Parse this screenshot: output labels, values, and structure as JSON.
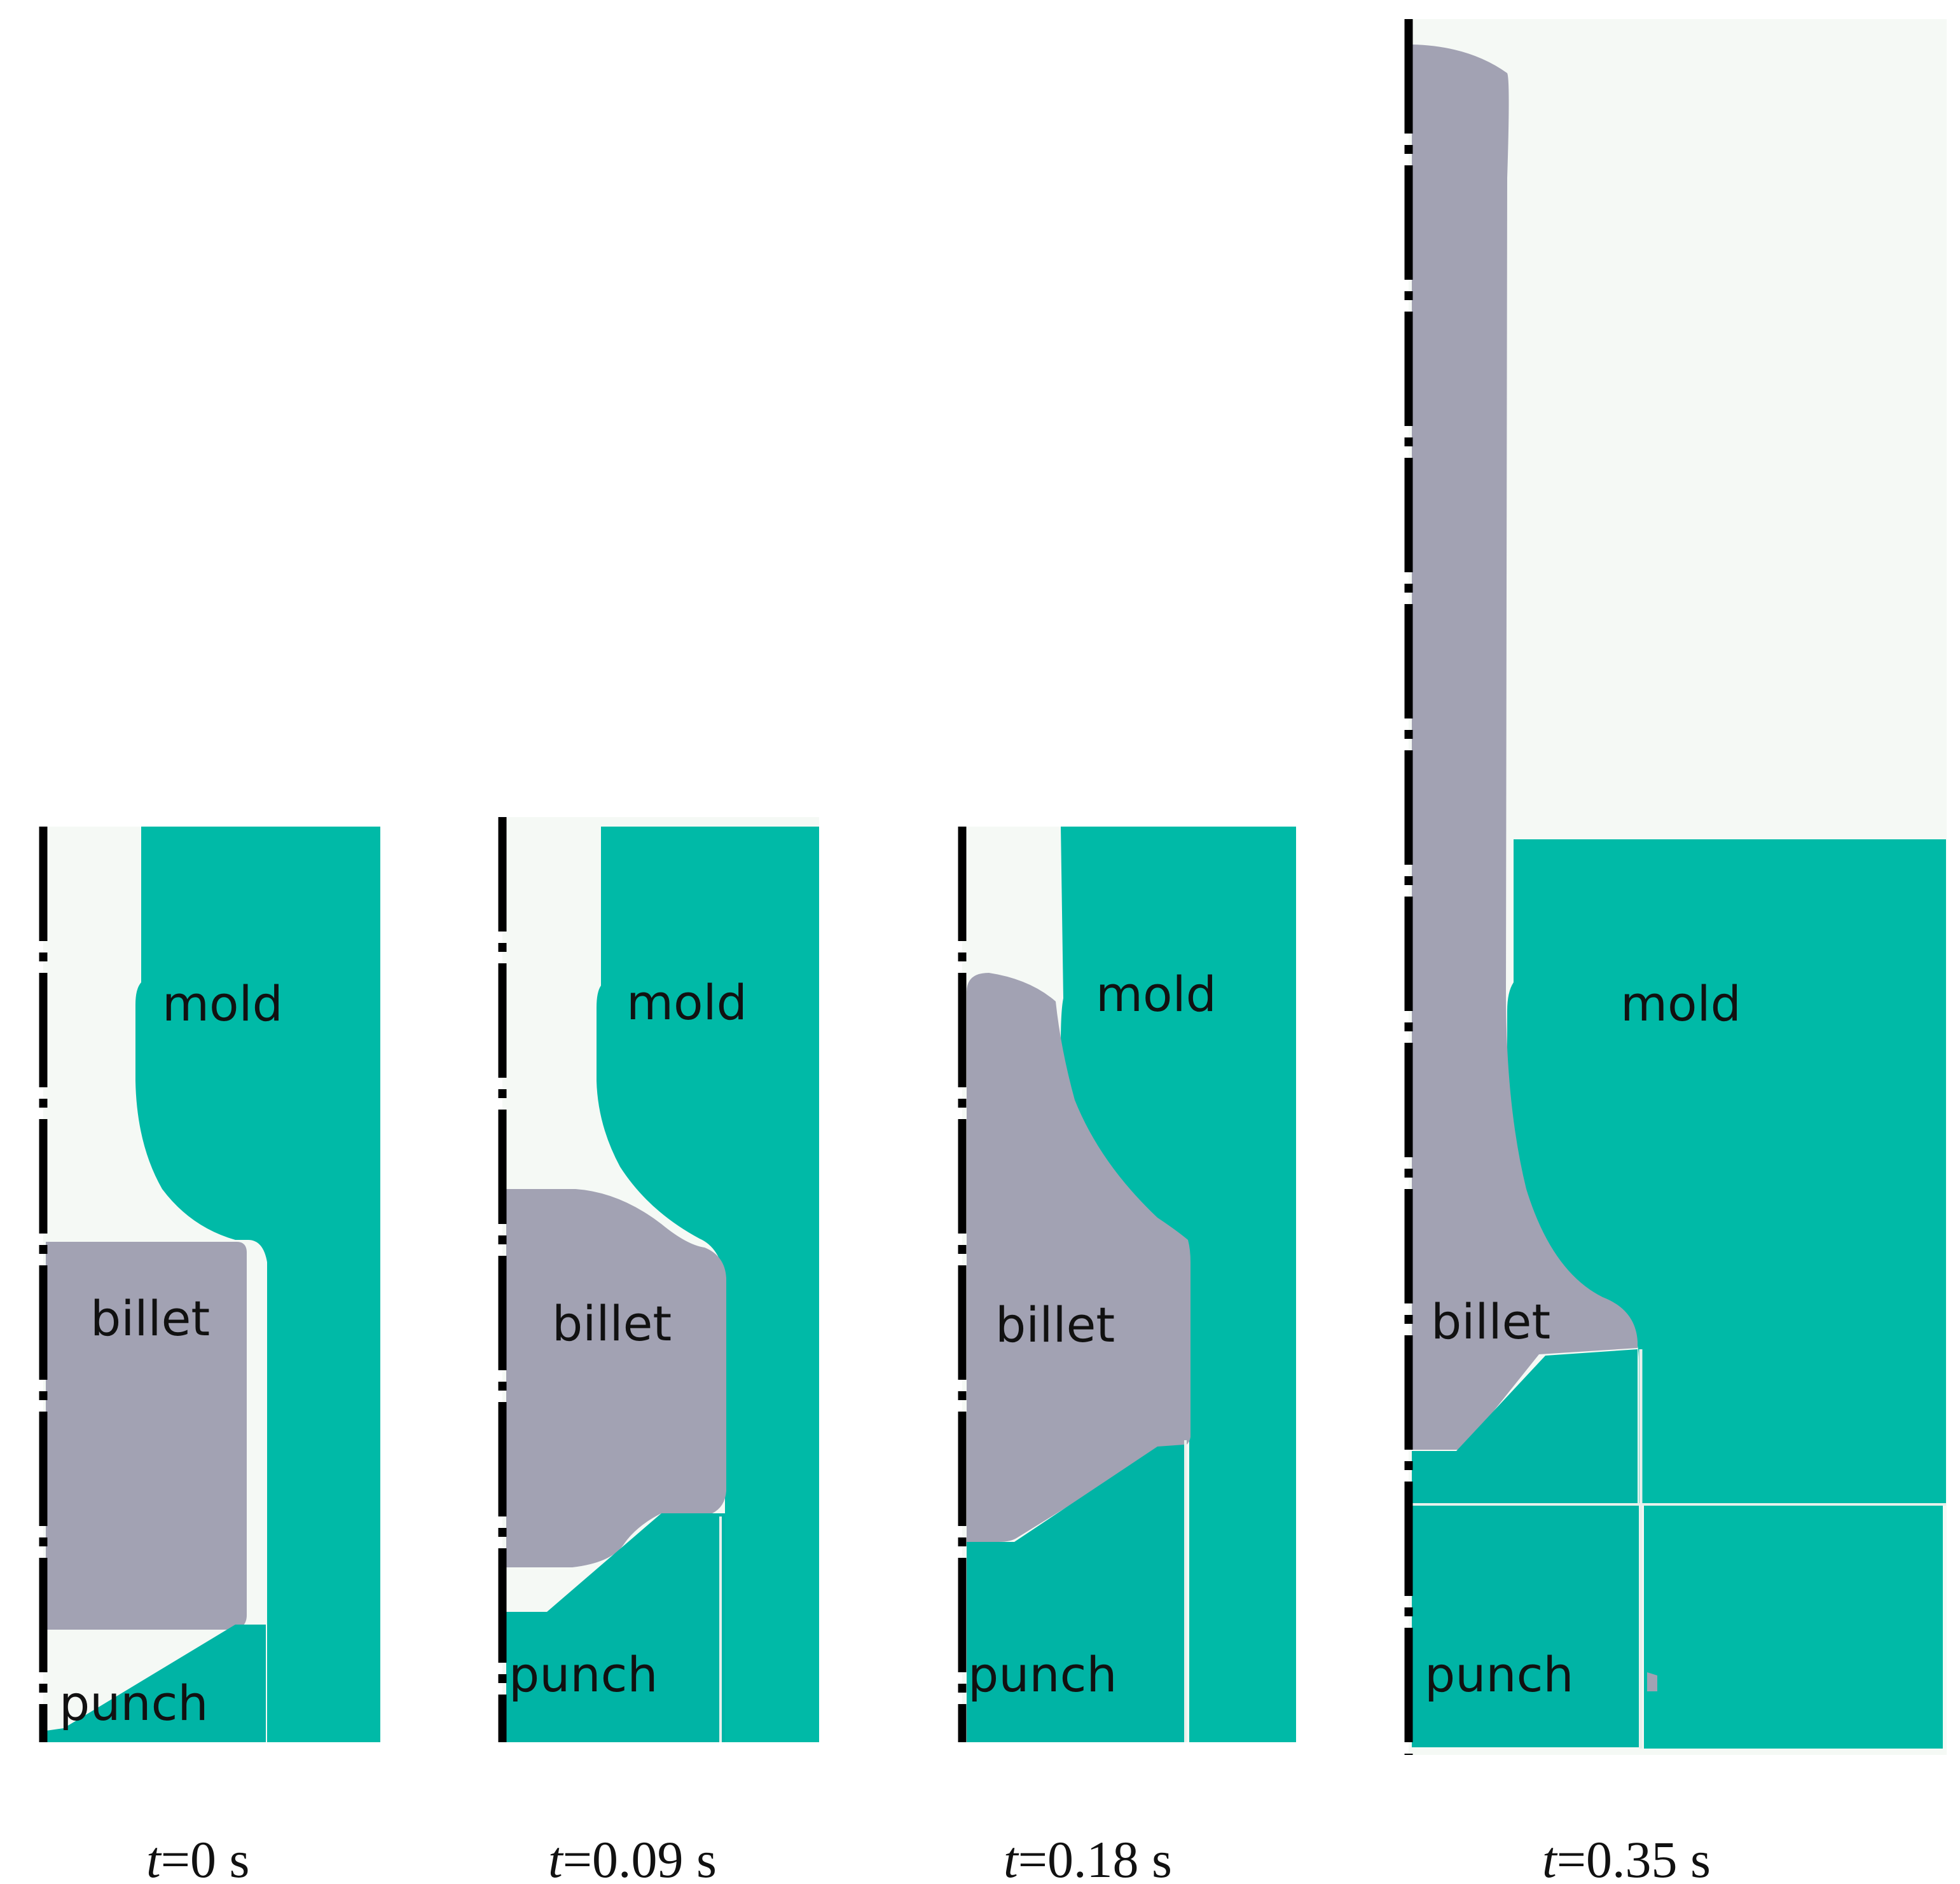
{
  "colors": {
    "mold": "#00BAA7",
    "punch": "#00B4A5",
    "billet": "#A2A2B3",
    "cavity": "#F5F9F5",
    "axis": "#000000"
  },
  "labels": {
    "mold": "mold",
    "billet": "billet",
    "punch": "punch"
  },
  "frames": [
    {
      "t_var": "t",
      "t_rest": "=0 s"
    },
    {
      "t_var": "t",
      "t_rest": "=0.09 s"
    },
    {
      "t_var": "t",
      "t_rest": "=0.18 s"
    },
    {
      "t_var": "t",
      "t_rest": "=0.35 s"
    }
  ]
}
